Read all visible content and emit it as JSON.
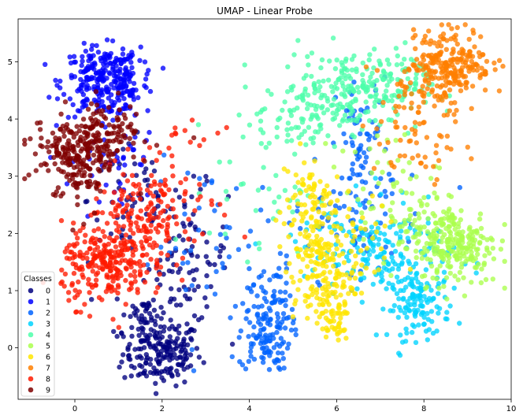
{
  "chart_data": {
    "type": "scatter",
    "title": "UMAP - Linear Probe",
    "xlabel": "",
    "ylabel": "",
    "xlim": [
      -1.3,
      10.0
    ],
    "ylim": [
      -0.9,
      5.75
    ],
    "xticks": [
      "0",
      "2",
      "4",
      "6",
      "8",
      "10"
    ],
    "yticks": [
      "0",
      "1",
      "2",
      "3",
      "4",
      "5"
    ],
    "grid": false,
    "legend": {
      "title": "Classes",
      "position": "bottom-left"
    },
    "series": [
      {
        "name": "0",
        "color": "#00007f",
        "clusters": [
          {
            "cx": 2.0,
            "cy": -0.1,
            "sx": 0.45,
            "sy": 0.28,
            "n": 170
          },
          {
            "cx": 1.6,
            "cy": 0.5,
            "sx": 0.35,
            "sy": 0.3,
            "n": 60
          },
          {
            "cx": 2.6,
            "cy": 1.6,
            "sx": 0.45,
            "sy": 0.6,
            "n": 90
          },
          {
            "cx": 1.3,
            "cy": 2.6,
            "sx": 0.5,
            "sy": 0.6,
            "n": 50
          }
        ]
      },
      {
        "name": "1",
        "color": "#0000ff",
        "clusters": [
          {
            "cx": 0.6,
            "cy": 4.65,
            "sx": 0.45,
            "sy": 0.3,
            "n": 230
          },
          {
            "cx": 1.2,
            "cy": 4.7,
            "sx": 0.25,
            "sy": 0.35,
            "n": 60
          },
          {
            "cx": 0.9,
            "cy": 3.2,
            "sx": 0.5,
            "sy": 0.55,
            "n": 40
          }
        ]
      },
      {
        "name": "2",
        "color": "#0063ff",
        "clusters": [
          {
            "cx": 4.35,
            "cy": 0.2,
            "sx": 0.3,
            "sy": 0.3,
            "n": 110
          },
          {
            "cx": 4.5,
            "cy": 0.9,
            "sx": 0.25,
            "sy": 0.35,
            "n": 50
          },
          {
            "cx": 6.6,
            "cy": 3.5,
            "sx": 0.3,
            "sy": 0.6,
            "n": 70
          },
          {
            "cx": 6.2,
            "cy": 2.2,
            "sx": 1.0,
            "sy": 0.5,
            "n": 70
          },
          {
            "cx": 3.0,
            "cy": 1.8,
            "sx": 0.6,
            "sy": 0.7,
            "n": 40
          }
        ]
      },
      {
        "name": "3",
        "color": "#00d4ff",
        "clusters": [
          {
            "cx": 7.9,
            "cy": 0.75,
            "sx": 0.35,
            "sy": 0.3,
            "n": 120
          },
          {
            "cx": 7.3,
            "cy": 1.6,
            "sx": 0.7,
            "sy": 0.4,
            "n": 120
          },
          {
            "cx": 6.2,
            "cy": 1.8,
            "sx": 0.8,
            "sy": 0.4,
            "n": 60
          }
        ]
      },
      {
        "name": "4",
        "color": "#4dffaa",
        "clusters": [
          {
            "cx": 6.3,
            "cy": 4.5,
            "sx": 0.8,
            "sy": 0.35,
            "n": 210
          },
          {
            "cx": 5.2,
            "cy": 4.0,
            "sx": 0.5,
            "sy": 0.35,
            "n": 60
          },
          {
            "cx": 4.3,
            "cy": 2.8,
            "sx": 0.6,
            "sy": 0.6,
            "n": 40
          },
          {
            "cx": 7.4,
            "cy": 4.7,
            "sx": 0.4,
            "sy": 0.3,
            "n": 40
          }
        ]
      },
      {
        "name": "5",
        "color": "#aaff4d",
        "clusters": [
          {
            "cx": 8.8,
            "cy": 1.8,
            "sx": 0.45,
            "sy": 0.35,
            "n": 200
          },
          {
            "cx": 8.0,
            "cy": 2.1,
            "sx": 0.5,
            "sy": 0.35,
            "n": 70
          },
          {
            "cx": 7.2,
            "cy": 2.8,
            "sx": 0.6,
            "sy": 0.5,
            "n": 50
          }
        ]
      },
      {
        "name": "6",
        "color": "#ffe600",
        "clusters": [
          {
            "cx": 5.7,
            "cy": 1.2,
            "sx": 0.35,
            "sy": 0.4,
            "n": 130
          },
          {
            "cx": 5.4,
            "cy": 2.3,
            "sx": 0.35,
            "sy": 0.6,
            "n": 120
          },
          {
            "cx": 5.9,
            "cy": 0.5,
            "sx": 0.2,
            "sy": 0.2,
            "n": 40
          },
          {
            "cx": 6.5,
            "cy": 1.7,
            "sx": 0.5,
            "sy": 0.4,
            "n": 40
          }
        ]
      },
      {
        "name": "7",
        "color": "#ff7f00",
        "clusters": [
          {
            "cx": 8.65,
            "cy": 5.0,
            "sx": 0.45,
            "sy": 0.3,
            "n": 200
          },
          {
            "cx": 8.0,
            "cy": 4.6,
            "sx": 0.45,
            "sy": 0.35,
            "n": 70
          },
          {
            "cx": 7.8,
            "cy": 3.6,
            "sx": 0.5,
            "sy": 0.5,
            "n": 50
          }
        ]
      },
      {
        "name": "8",
        "color": "#ff1a00",
        "clusters": [
          {
            "cx": 0.7,
            "cy": 1.45,
            "sx": 0.5,
            "sy": 0.35,
            "n": 230
          },
          {
            "cx": 1.5,
            "cy": 2.2,
            "sx": 0.55,
            "sy": 0.5,
            "n": 150
          },
          {
            "cx": 2.3,
            "cy": 2.8,
            "sx": 0.5,
            "sy": 0.5,
            "n": 50
          }
        ]
      },
      {
        "name": "9",
        "color": "#7f0000",
        "clusters": [
          {
            "cx": 0.1,
            "cy": 3.45,
            "sx": 0.55,
            "sy": 0.25,
            "n": 200
          },
          {
            "cx": 0.8,
            "cy": 3.9,
            "sx": 0.45,
            "sy": 0.25,
            "n": 70
          },
          {
            "cx": 0.1,
            "cy": 2.9,
            "sx": 0.35,
            "sy": 0.3,
            "n": 50
          }
        ]
      }
    ]
  }
}
